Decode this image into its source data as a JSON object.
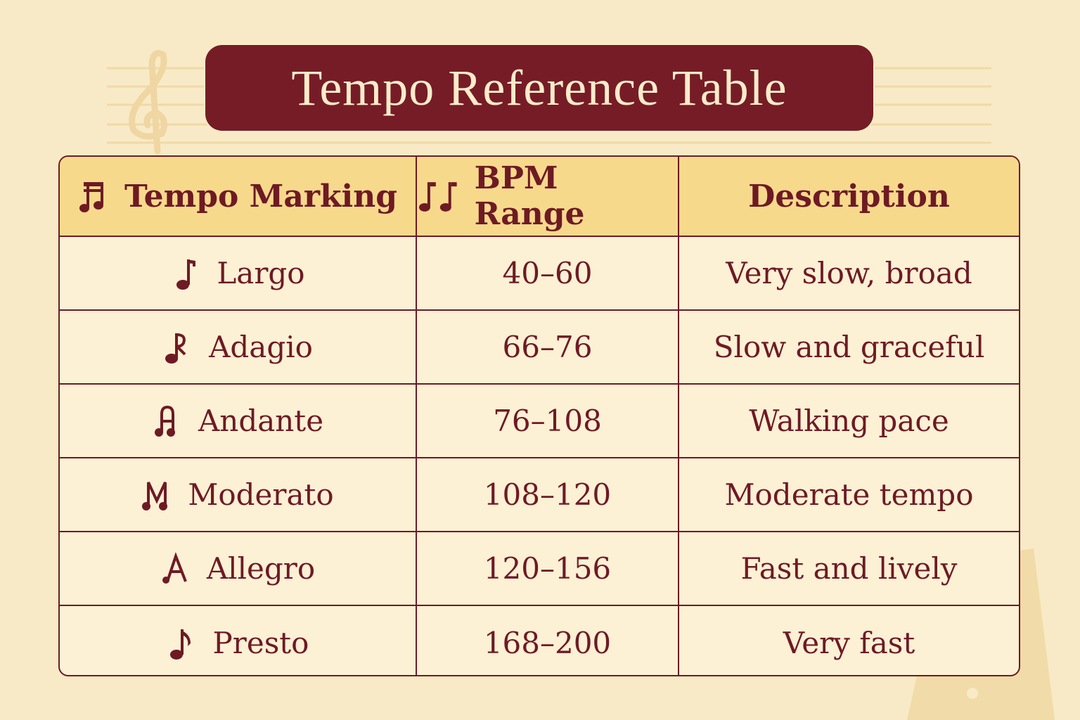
{
  "title": "Tempo Reference Table",
  "colors": {
    "title_bg": "#761c26",
    "header_bg": "#f7d98c",
    "row_bg": "#fcf0d5",
    "text": "#6e1a24",
    "page_bg": "#f8eac6"
  },
  "background_icons": [
    "treble-clef-icon",
    "staff-lines",
    "metronome-icon"
  ],
  "table": {
    "headers": [
      {
        "label": "Tempo Marking",
        "icon": "beamed-notes-icon"
      },
      {
        "label": "BPM Range",
        "icon": "two-quarter-notes-icon"
      },
      {
        "label": "Description"
      }
    ],
    "rows": [
      {
        "marking": "Largo",
        "icon": "quarter-note-icon",
        "bpm": "40–60",
        "description": "Very slow, broad"
      },
      {
        "marking": "Adagio",
        "icon": "note-r-icon",
        "bpm": "66–76",
        "description": "Slow and graceful"
      },
      {
        "marking": "Andante",
        "icon": "note-a-icon",
        "bpm": "76–108",
        "description": "Walking pace"
      },
      {
        "marking": "Moderato",
        "icon": "note-m-icon",
        "bpm": "108–120",
        "description": "Moderate tempo"
      },
      {
        "marking": "Allegro",
        "icon": "letter-a-note-icon",
        "bpm": "120–156",
        "description": "Fast and lively"
      },
      {
        "marking": "Presto",
        "icon": "eighth-note-icon",
        "bpm": "168–200",
        "description": "Very fast"
      }
    ]
  }
}
